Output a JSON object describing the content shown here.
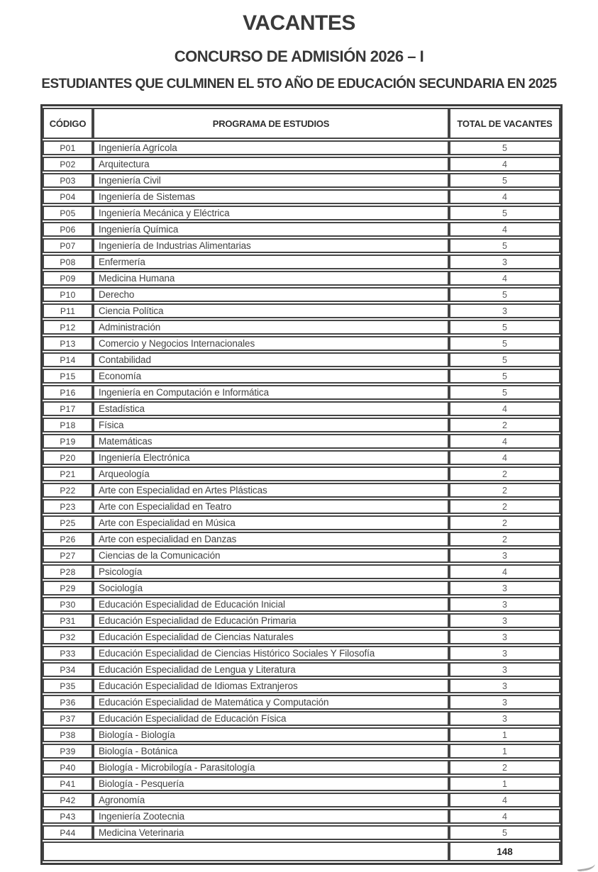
{
  "page": {
    "title": "VACANTES",
    "subtitle": "CONCURSO DE ADMISIÓN 2026 – I",
    "audience_line": "ESTUDIANTES QUE CULMINEN EL 5TO AÑO DE EDUCACIÓN SECUNDARIA EN 2025"
  },
  "table": {
    "columns": [
      "CÓDIGO",
      "PROGRAMA DE ESTUDIOS",
      "TOTAL DE VACANTES"
    ],
    "rows": [
      {
        "code": "P01",
        "program": "Ingeniería Agrícola",
        "vacancies": "5"
      },
      {
        "code": "P02",
        "program": "Arquitectura",
        "vacancies": "4"
      },
      {
        "code": "P03",
        "program": "Ingeniería Civil",
        "vacancies": "5"
      },
      {
        "code": "P04",
        "program": "Ingeniería de Sistemas",
        "vacancies": "4"
      },
      {
        "code": "P05",
        "program": "Ingeniería Mecánica y Eléctrica",
        "vacancies": "5"
      },
      {
        "code": "P06",
        "program": "Ingeniería Química",
        "vacancies": "4"
      },
      {
        "code": "P07",
        "program": "Ingeniería de Industrias Alimentarias",
        "vacancies": "5"
      },
      {
        "code": "P08",
        "program": "Enfermería",
        "vacancies": "3"
      },
      {
        "code": "P09",
        "program": "Medicina Humana",
        "vacancies": "4"
      },
      {
        "code": "P10",
        "program": "Derecho",
        "vacancies": "5"
      },
      {
        "code": "P11",
        "program": "Ciencia Política",
        "vacancies": "3"
      },
      {
        "code": "P12",
        "program": "Administración",
        "vacancies": "5"
      },
      {
        "code": "P13",
        "program": "Comercio y Negocios Internacionales",
        "vacancies": "5"
      },
      {
        "code": "P14",
        "program": "Contabilidad",
        "vacancies": "5"
      },
      {
        "code": "P15",
        "program": "Economía",
        "vacancies": "5"
      },
      {
        "code": "P16",
        "program": "Ingeniería en Computación e Informática",
        "vacancies": "5"
      },
      {
        "code": "P17",
        "program": "Estadística",
        "vacancies": "4"
      },
      {
        "code": "P18",
        "program": "Física",
        "vacancies": "2"
      },
      {
        "code": "P19",
        "program": "Matemáticas",
        "vacancies": "4"
      },
      {
        "code": "P20",
        "program": "Ingeniería Electrónica",
        "vacancies": "4"
      },
      {
        "code": "P21",
        "program": "Arqueología",
        "vacancies": "2"
      },
      {
        "code": "P22",
        "program": "Arte con Especialidad en Artes Plásticas",
        "vacancies": "2"
      },
      {
        "code": "P23",
        "program": "Arte con Especialidad en Teatro",
        "vacancies": "2"
      },
      {
        "code": "P25",
        "program": "Arte con Especialidad en Música",
        "vacancies": "2"
      },
      {
        "code": "P26",
        "program": "Arte con especialidad en Danzas",
        "vacancies": "2"
      },
      {
        "code": "P27",
        "program": "Ciencias de la Comunicación",
        "vacancies": "3"
      },
      {
        "code": "P28",
        "program": "Psicología",
        "vacancies": "4"
      },
      {
        "code": "P29",
        "program": "Sociología",
        "vacancies": "3"
      },
      {
        "code": "P30",
        "program": "Educación Especialidad de Educación Inicial",
        "vacancies": "3"
      },
      {
        "code": "P31",
        "program": "Educación Especialidad de Educación Primaria",
        "vacancies": "3"
      },
      {
        "code": "P32",
        "program": "Educación Especialidad de Ciencias Naturales",
        "vacancies": "3"
      },
      {
        "code": "P33",
        "program": "Educación Especialidad de Ciencias Histórico Sociales Y Filosofía",
        "vacancies": "3"
      },
      {
        "code": "P34",
        "program": "Educación Especialidad de Lengua y Literatura",
        "vacancies": "3"
      },
      {
        "code": "P35",
        "program": "Educación Especialidad de Idiomas Extranjeros",
        "vacancies": "3"
      },
      {
        "code": "P36",
        "program": "Educación Especialidad de Matemática y Computación",
        "vacancies": "3"
      },
      {
        "code": "P37",
        "program": "Educación Especialidad de Educación Física",
        "vacancies": "3"
      },
      {
        "code": "P38",
        "program": "Biología - Biología",
        "vacancies": "1"
      },
      {
        "code": "P39",
        "program": "Biología - Botánica",
        "vacancies": "1"
      },
      {
        "code": "P40",
        "program": "Biología - Microbilogía - Parasitología",
        "vacancies": "2"
      },
      {
        "code": "P41",
        "program": "Biología - Pesquería",
        "vacancies": "1"
      },
      {
        "code": "P42",
        "program": "Agronomía",
        "vacancies": "4"
      },
      {
        "code": "P43",
        "program": "Ingeniería Zootecnia",
        "vacancies": "4"
      },
      {
        "code": "P44",
        "program": "Medicina Veterinaria",
        "vacancies": "5"
      }
    ],
    "total_label": "",
    "total_vacancies": "148"
  }
}
